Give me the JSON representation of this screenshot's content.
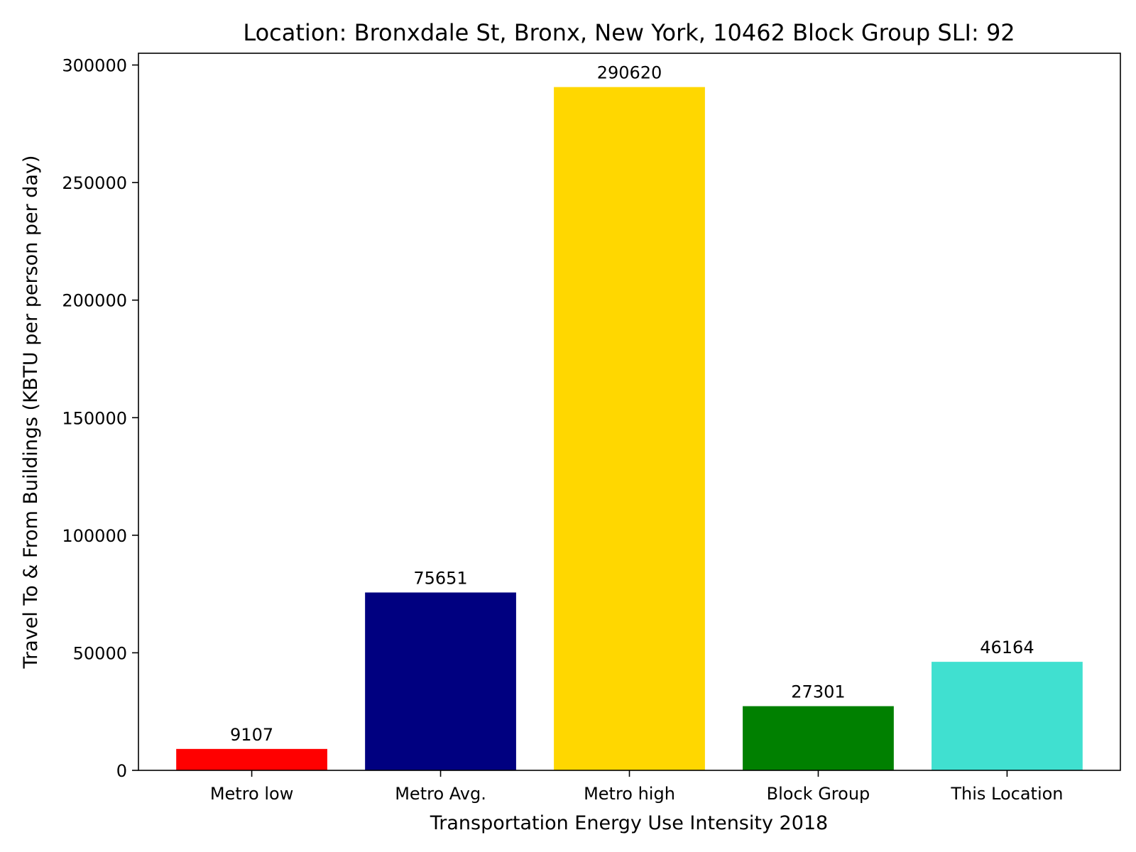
{
  "chart_data": {
    "type": "bar",
    "title": "Location: Bronxdale St, Bronx, New York, 10462 Block Group SLI: 92",
    "xlabel": "Transportation Energy Use Intensity 2018",
    "ylabel": "Travel To & From Buildings (KBTU per person per day)",
    "categories": [
      "Metro low",
      "Metro Avg.",
      "Metro high",
      "Block Group",
      "This Location"
    ],
    "values": [
      9107,
      75651,
      290620,
      27301,
      46164
    ],
    "colors": [
      "#ff0000",
      "#000080",
      "#ffd700",
      "#008000",
      "#40e0d0"
    ],
    "ylim": [
      0,
      305000
    ],
    "yticks": [
      0,
      50000,
      100000,
      150000,
      200000,
      250000,
      300000
    ],
    "grid": false,
    "legend": "none"
  }
}
